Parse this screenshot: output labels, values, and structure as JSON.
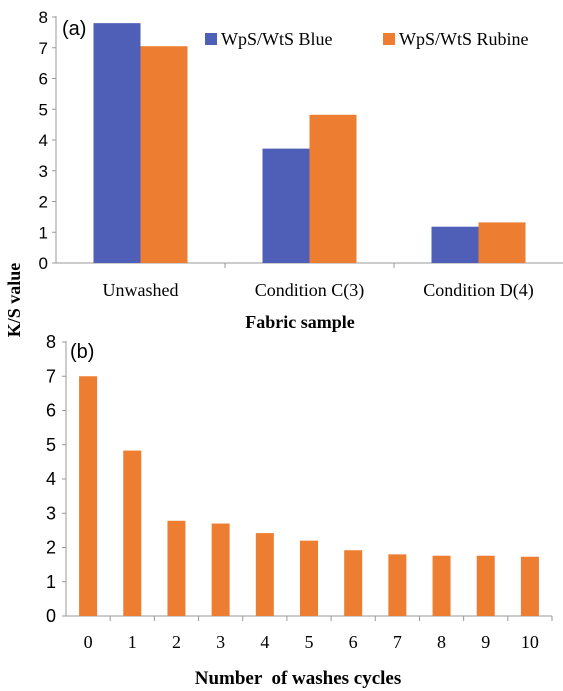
{
  "y_label": "K/S value",
  "chart_data": [
    {
      "type": "bar",
      "panel_label": "(a)",
      "categories": [
        "Unwashed",
        "Condition C(3)",
        "Condition D(4)"
      ],
      "series": [
        {
          "name": "WpS/WtS Blue",
          "color": "#4F5EB6",
          "values": [
            7.8,
            3.72,
            1.18
          ]
        },
        {
          "name": "WpS/WtS Rubine",
          "color": "#ED7D31",
          "values": [
            7.05,
            4.82,
            1.32
          ]
        }
      ],
      "xlabel": "Fabric sample",
      "ylabel": "K/S value",
      "ylim": [
        0,
        8
      ],
      "yticks": [
        "0",
        "1",
        "2",
        "3",
        "4",
        "5",
        "6",
        "7",
        "8"
      ],
      "legend": "top-right",
      "grid": false
    },
    {
      "type": "bar",
      "panel_label": "(b)",
      "categories": [
        "0",
        "1",
        "2",
        "3",
        "4",
        "5",
        "6",
        "7",
        "8",
        "9",
        "10"
      ],
      "series": [
        {
          "color": "#ED7D31",
          "values": [
            7.0,
            4.83,
            2.78,
            2.7,
            2.42,
            2.2,
            1.92,
            1.8,
            1.76,
            1.76,
            1.73
          ]
        }
      ],
      "xlabel": "Number  of washes cycles",
      "ylabel": "K/S value",
      "ylim": [
        0,
        8
      ],
      "yticks": [
        "0",
        "1",
        "2",
        "3",
        "4",
        "5",
        "6",
        "7",
        "8"
      ],
      "legend": "none",
      "grid": false
    }
  ]
}
